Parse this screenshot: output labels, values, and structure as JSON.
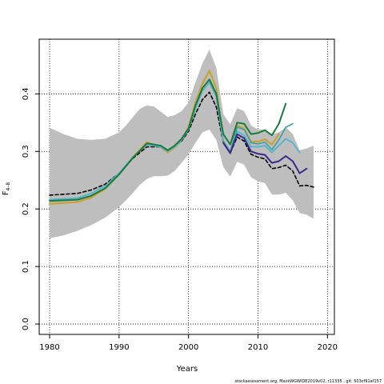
{
  "chart_data": {
    "type": "line",
    "xlabel": "Years",
    "ylabel": "F",
    "ylabel_subscript": "4–8",
    "xlim": [
      1978.5,
      2021
    ],
    "ylim": [
      -0.018,
      0.495
    ],
    "x_ticks": [
      1980,
      1990,
      2000,
      2010,
      2020
    ],
    "y_ticks": [
      0.0,
      0.1,
      0.2,
      0.3,
      0.4
    ],
    "x_tick_labels": [
      "1980",
      "1990",
      "2000",
      "2010",
      "2020"
    ],
    "y_tick_labels": [
      "0.0",
      "0.1",
      "0.2",
      "0.3",
      "0.4"
    ],
    "grid": true,
    "footer_text": "stockassessment.org, MackWGWIDE2019v02, r11335 , git: 503cf91af157",
    "band": {
      "color": "#bebebe",
      "x": [
        1980,
        1982,
        1984,
        1986,
        1988,
        1990,
        1991,
        1992,
        1993,
        1994,
        1995,
        1996,
        1997,
        1998,
        1999,
        2000,
        2001,
        2002,
        2003,
        2004,
        2005,
        2006,
        2007,
        2008,
        2009,
        2010,
        2011,
        2012,
        2013,
        2014,
        2015,
        2016,
        2017,
        2018
      ],
      "upper": [
        0.341,
        0.33,
        0.322,
        0.32,
        0.322,
        0.333,
        0.345,
        0.36,
        0.374,
        0.38,
        0.378,
        0.369,
        0.36,
        0.363,
        0.37,
        0.385,
        0.42,
        0.453,
        0.477,
        0.445,
        0.365,
        0.347,
        0.375,
        0.37,
        0.345,
        0.338,
        0.338,
        0.33,
        0.333,
        0.342,
        0.33,
        0.302,
        0.305,
        0.31
      ],
      "lower": [
        0.149,
        0.154,
        0.162,
        0.172,
        0.185,
        0.203,
        0.215,
        0.228,
        0.242,
        0.252,
        0.257,
        0.257,
        0.258,
        0.266,
        0.28,
        0.295,
        0.315,
        0.333,
        0.338,
        0.32,
        0.273,
        0.256,
        0.282,
        0.277,
        0.255,
        0.248,
        0.245,
        0.225,
        0.225,
        0.228,
        0.215,
        0.193,
        0.19,
        0.183
      ]
    },
    "series": [
      {
        "color": "#000000",
        "dashed": true,
        "width": 1.6,
        "x": [
          1980,
          1984,
          1986,
          1988,
          1990,
          1992,
          1994,
          1996,
          1997,
          1998,
          1999,
          2000,
          2001,
          2002,
          2003,
          2004,
          2005,
          2006,
          2007,
          2008,
          2009,
          2010,
          2011,
          2012,
          2013,
          2014,
          2015,
          2016,
          2017,
          2018
        ],
        "values": [
          0.224,
          0.227,
          0.233,
          0.243,
          0.262,
          0.288,
          0.308,
          0.308,
          0.302,
          0.308,
          0.318,
          0.335,
          0.365,
          0.39,
          0.403,
          0.377,
          0.315,
          0.297,
          0.325,
          0.318,
          0.295,
          0.29,
          0.287,
          0.27,
          0.272,
          0.276,
          0.266,
          0.24,
          0.241,
          0.238
        ]
      },
      {
        "color": "#c9a235",
        "dashed": false,
        "width": 2.2,
        "x": [
          1980,
          1984,
          1986,
          1988,
          1990,
          1992,
          1994,
          1996,
          1997,
          1998,
          1999,
          2000,
          2001,
          2002,
          2003,
          2004,
          2005,
          2006,
          2007,
          2008,
          2009,
          2010,
          2011,
          2012,
          2013
        ],
        "values": [
          0.209,
          0.212,
          0.22,
          0.235,
          0.26,
          0.29,
          0.316,
          0.308,
          0.298,
          0.307,
          0.32,
          0.342,
          0.385,
          0.418,
          0.44,
          0.41,
          0.317,
          0.297,
          0.345,
          0.34,
          0.317,
          0.317,
          0.321,
          0.312,
          0.33
        ]
      },
      {
        "color": "#4fb6cc",
        "dashed": false,
        "width": 1.8,
        "x": [
          1980,
          1984,
          1986,
          1988,
          1990,
          1992,
          1994,
          1996,
          1997,
          1998,
          1999,
          2000,
          2001,
          2002,
          2003,
          2004,
          2005,
          2006,
          2007,
          2008,
          2009,
          2010,
          2011,
          2012,
          2013,
          2014,
          2015,
          2016
        ],
        "values": [
          0.216,
          0.219,
          0.227,
          0.24,
          0.262,
          0.29,
          0.312,
          0.308,
          0.3,
          0.308,
          0.32,
          0.338,
          0.375,
          0.405,
          0.42,
          0.395,
          0.318,
          0.298,
          0.335,
          0.328,
          0.308,
          0.308,
          0.31,
          0.298,
          0.31,
          0.322,
          0.315,
          0.298
        ]
      },
      {
        "color": "#3d9fa6",
        "dashed": false,
        "width": 1.6,
        "x": [
          2005,
          2006,
          2007,
          2008,
          2009,
          2010,
          2011,
          2012,
          2013,
          2014,
          2015
        ],
        "values": [
          0.318,
          0.3,
          0.342,
          0.338,
          0.315,
          0.313,
          0.316,
          0.303,
          0.32,
          0.342,
          0.348
        ]
      },
      {
        "color": "#1a7a3c",
        "dashed": false,
        "width": 2.0,
        "x": [
          1980,
          1984,
          1986,
          1988,
          1990,
          1992,
          1994,
          1996,
          1997,
          1998,
          1999,
          2000,
          2001,
          2002,
          2003,
          2004,
          2005,
          2006,
          2007,
          2008,
          2009,
          2010,
          2011,
          2012,
          2013,
          2014
        ],
        "values": [
          0.214,
          0.216,
          0.223,
          0.236,
          0.26,
          0.289,
          0.314,
          0.31,
          0.302,
          0.31,
          0.322,
          0.34,
          0.38,
          0.41,
          0.425,
          0.4,
          0.33,
          0.312,
          0.35,
          0.348,
          0.33,
          0.332,
          0.337,
          0.328,
          0.348,
          0.383
        ]
      },
      {
        "color": "#3b2a8c",
        "dashed": false,
        "width": 2.0,
        "x": [
          2005,
          2006,
          2007,
          2008,
          2009,
          2010,
          2011,
          2012,
          2013,
          2014,
          2015,
          2016,
          2017
        ],
        "values": [
          0.315,
          0.297,
          0.33,
          0.323,
          0.3,
          0.296,
          0.294,
          0.28,
          0.283,
          0.292,
          0.283,
          0.262,
          0.27
        ]
      }
    ]
  }
}
